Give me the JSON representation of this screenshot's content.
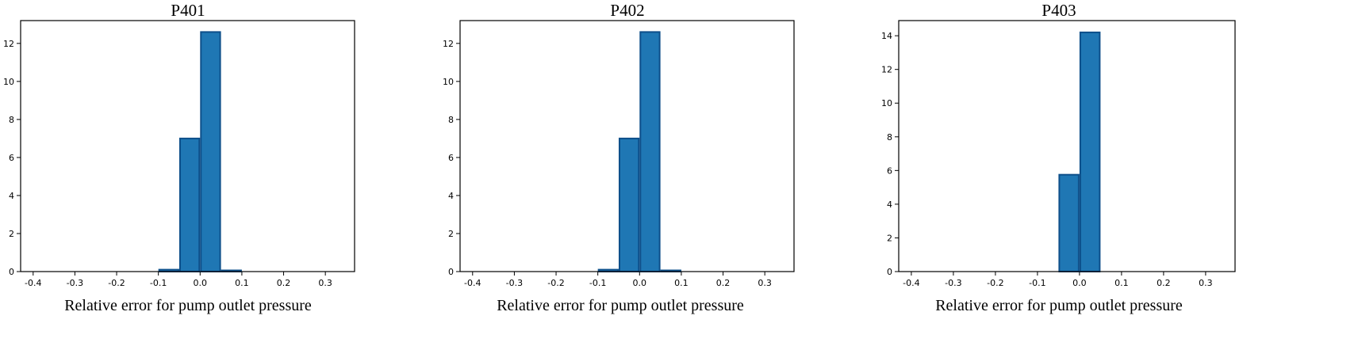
{
  "figure": {
    "bar_color": "#1f77b4",
    "bar_edge_color": "#0d4f8a"
  },
  "chart_data": [
    {
      "type": "bar",
      "title": "P401",
      "xlabel": "Relative error for pump outlet pressure",
      "ylabel": "",
      "xlim": [
        -0.43,
        0.37
      ],
      "ylim": [
        0,
        13.2
      ],
      "xticks": [
        -0.4,
        -0.3,
        -0.2,
        -0.1,
        0.0,
        0.1,
        0.2,
        0.3
      ],
      "xtick_labels": [
        "-0.4",
        "-0.3",
        "-0.2",
        "-0.1",
        "0.0",
        "0.1",
        "0.2",
        "0.3"
      ],
      "yticks": [
        0,
        2,
        4,
        6,
        8,
        10,
        12
      ],
      "ytick_labels": [
        "0",
        "2",
        "4",
        "6",
        "8",
        "10",
        "12"
      ],
      "bin_width": 0.05,
      "bins": [
        {
          "x0": -0.1,
          "x1": -0.05,
          "value": 0.1
        },
        {
          "x0": -0.05,
          "x1": 0.0,
          "value": 7.0
        },
        {
          "x0": 0.0,
          "x1": 0.05,
          "value": 12.6
        },
        {
          "x0": 0.05,
          "x1": 0.1,
          "value": 0.06
        }
      ],
      "grid": false
    },
    {
      "type": "bar",
      "title": "P402",
      "xlabel": "Relative error for pump outlet pressure",
      "ylabel": "",
      "xlim": [
        -0.43,
        0.37
      ],
      "ylim": [
        0,
        13.2
      ],
      "xticks": [
        -0.4,
        -0.3,
        -0.2,
        -0.1,
        0.0,
        0.1,
        0.2,
        0.3
      ],
      "xtick_labels": [
        "-0.4",
        "-0.3",
        "-0.2",
        "-0.1",
        "0.0",
        "0.1",
        "0.2",
        "0.3"
      ],
      "yticks": [
        0,
        2,
        4,
        6,
        8,
        10,
        12
      ],
      "ytick_labels": [
        "0",
        "2",
        "4",
        "6",
        "8",
        "10",
        "12"
      ],
      "bin_width": 0.05,
      "bins": [
        {
          "x0": -0.1,
          "x1": -0.05,
          "value": 0.1
        },
        {
          "x0": -0.05,
          "x1": 0.0,
          "value": 7.0
        },
        {
          "x0": 0.0,
          "x1": 0.05,
          "value": 12.6
        },
        {
          "x0": 0.05,
          "x1": 0.1,
          "value": 0.06
        }
      ],
      "grid": false
    },
    {
      "type": "bar",
      "title": "P403",
      "xlabel": "Relative error for pump outlet pressure",
      "ylabel": "",
      "xlim": [
        -0.43,
        0.37
      ],
      "ylim": [
        0,
        14.9
      ],
      "xticks": [
        -0.4,
        -0.3,
        -0.2,
        -0.1,
        0.0,
        0.1,
        0.2,
        0.3
      ],
      "xtick_labels": [
        "-0.4",
        "-0.3",
        "-0.2",
        "-0.1",
        "0.0",
        "0.1",
        "0.2",
        "0.3"
      ],
      "yticks": [
        0,
        2,
        4,
        6,
        8,
        10,
        12,
        14
      ],
      "ytick_labels": [
        "0",
        "2",
        "4",
        "6",
        "8",
        "10",
        "12",
        "14"
      ],
      "bin_width": 0.05,
      "bins": [
        {
          "x0": -0.05,
          "x1": 0.0,
          "value": 5.75
        },
        {
          "x0": 0.0,
          "x1": 0.05,
          "value": 14.2
        }
      ],
      "grid": false
    }
  ]
}
